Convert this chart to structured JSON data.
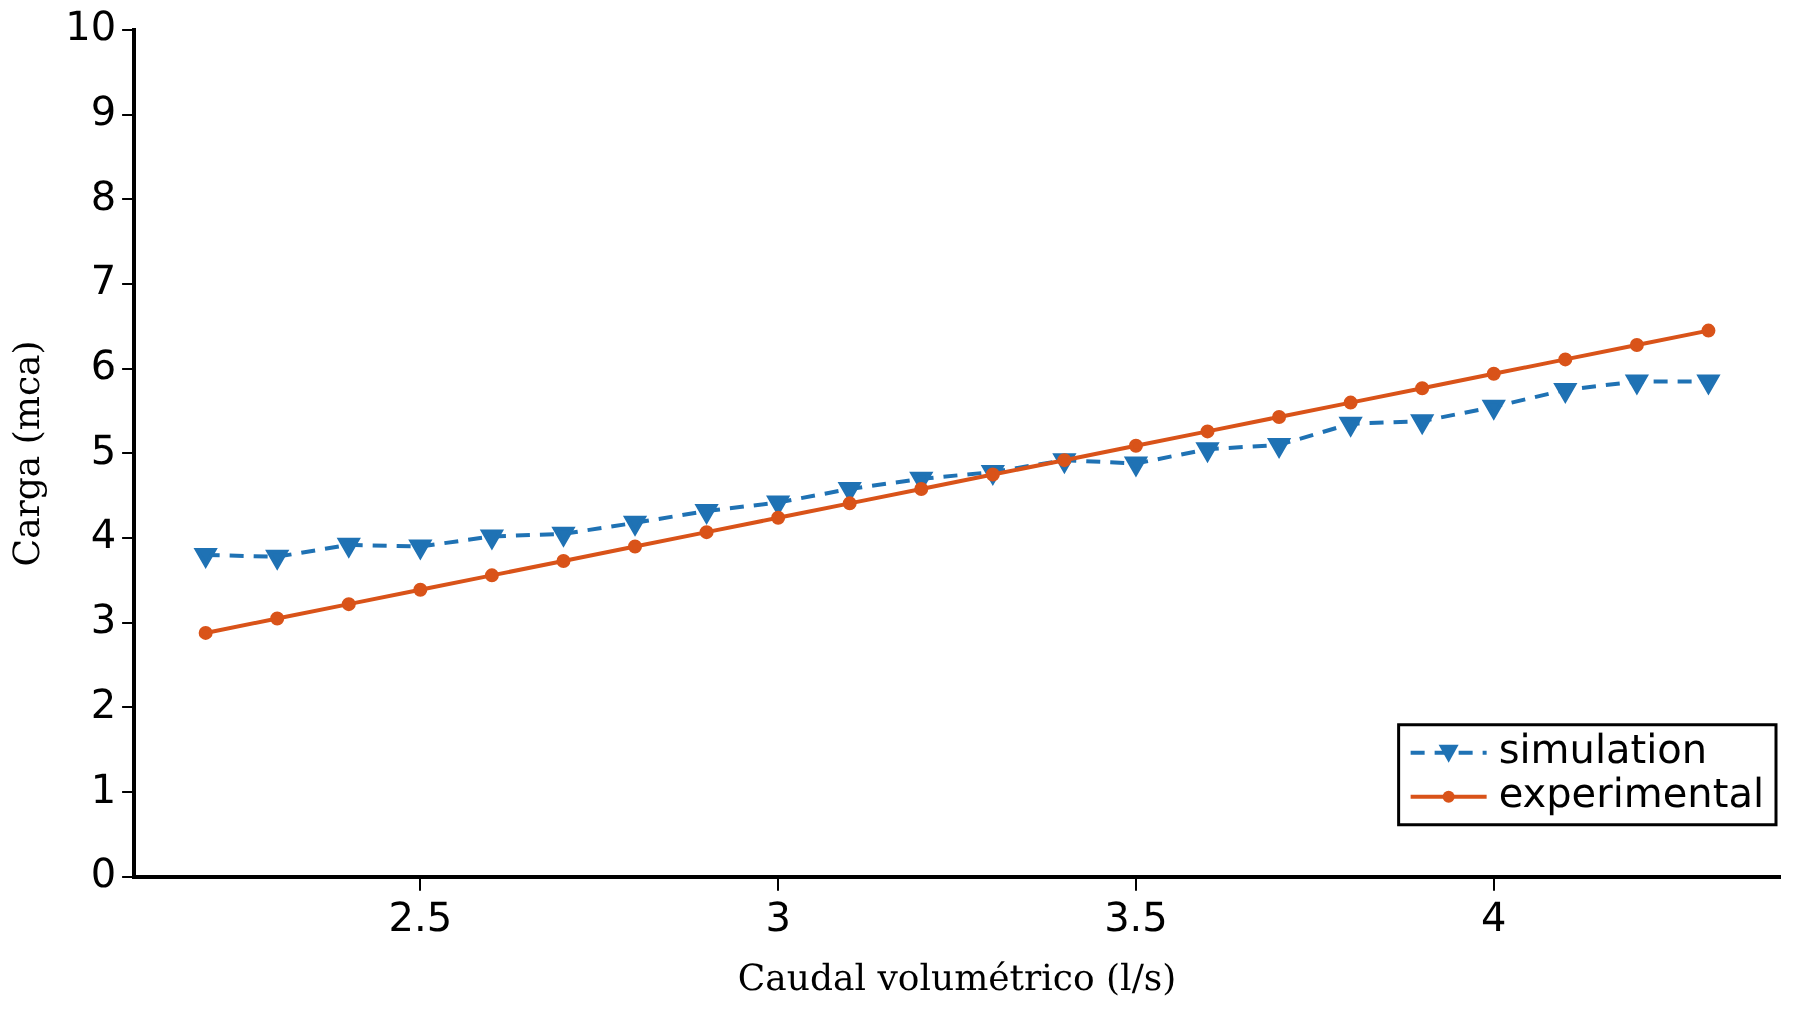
{
  "chart_data": {
    "type": "line",
    "xlabel": "Caudal volumétrico (l/s)",
    "ylabel": "Carga (mca)",
    "x": [
      2.2,
      2.3,
      2.4,
      2.5,
      2.6,
      2.7,
      2.8,
      2.9,
      3.0,
      3.1,
      3.2,
      3.3,
      3.4,
      3.5,
      3.6,
      3.7,
      3.8,
      3.9,
      4.0,
      4.1,
      4.2,
      4.3
    ],
    "series": [
      {
        "name": "simulation",
        "color": "#1f72b4",
        "marker": "triangle",
        "line_style": "dashed",
        "values": [
          3.8,
          3.78,
          3.92,
          3.9,
          4.02,
          4.05,
          4.18,
          4.32,
          4.42,
          4.58,
          4.7,
          4.78,
          4.92,
          4.88,
          5.05,
          5.1,
          5.35,
          5.38,
          5.55,
          5.75,
          5.85,
          5.85
        ]
      },
      {
        "name": "experimental",
        "color": "#d95319",
        "marker": "circle",
        "line_style": "solid",
        "values": [
          2.88,
          3.05,
          3.22,
          3.39,
          3.56,
          3.73,
          3.9,
          4.07,
          4.24,
          4.41,
          4.58,
          4.75,
          4.92,
          5.09,
          5.26,
          5.43,
          5.6,
          5.77,
          5.94,
          6.11,
          6.28,
          6.45
        ]
      }
    ],
    "xlim": [
      2.1,
      4.4
    ],
    "xticks": [
      2.5,
      3,
      3.5,
      4
    ],
    "ylim": [
      0,
      10
    ],
    "yticks": [
      0,
      1,
      2,
      3,
      4,
      5,
      6,
      7,
      8,
      9,
      10
    ],
    "grid": false,
    "legend": "bottom right"
  }
}
